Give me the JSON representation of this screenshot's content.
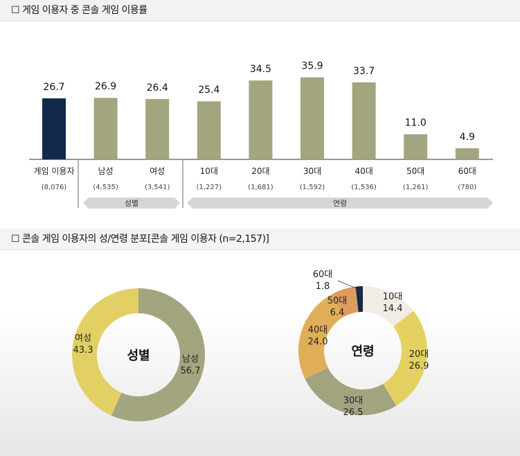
{
  "section1_title": "☐  게임 이용자 중 콘솔 게임 이용률",
  "section2_title": "☐  콘솔 게임 이용자의 성/연령 분포[콘솔 게임 이용자 (n=2,157)]",
  "chart_data": [
    {
      "type": "bar",
      "categories": [
        "게임 이용자",
        "남성",
        "여성",
        "10대",
        "20대",
        "30대",
        "40대",
        "50대",
        "60대"
      ],
      "sample_sizes": [
        "(8,076)",
        "(4,535)",
        "(3,541)",
        "(1,227)",
        "(1,681)",
        "(1,592)",
        "(1,536)",
        "(1,261)",
        "(780)"
      ],
      "values": [
        26.7,
        26.9,
        26.4,
        25.4,
        34.5,
        35.9,
        33.7,
        11.0,
        4.9
      ],
      "value_labels": [
        "26.7",
        "26.9",
        "26.4",
        "25.4",
        "34.5",
        "35.9",
        "33.7",
        "11.0",
        "4.9"
      ],
      "colors": [
        "#13294b",
        "#a3a57f",
        "#a3a57f",
        "#a3a57f",
        "#a3a57f",
        "#a3a57f",
        "#a3a57f",
        "#a3a57f",
        "#a3a57f"
      ],
      "groups": [
        {
          "label": "성별",
          "members": [
            "남성",
            "여성"
          ]
        },
        {
          "label": "연령",
          "members": [
            "10대",
            "20대",
            "30대",
            "40대",
            "50대",
            "60대"
          ]
        }
      ],
      "ylim": [
        0,
        40
      ]
    },
    {
      "type": "pie",
      "donut": true,
      "center_label": "성별",
      "slices": [
        {
          "label": "남성",
          "value": 56.7,
          "value_label": "56.7",
          "color": "#a3a57f"
        },
        {
          "label": "여성",
          "value": 43.3,
          "value_label": "43.3",
          "color": "#e2d065"
        }
      ]
    },
    {
      "type": "pie",
      "donut": true,
      "center_label": "연령",
      "slices": [
        {
          "label": "10대",
          "value": 14.4,
          "value_label": "14.4",
          "color": "#f1ece4"
        },
        {
          "label": "20대",
          "value": 26.9,
          "value_label": "26.9",
          "color": "#e3d262"
        },
        {
          "label": "30대",
          "value": 26.5,
          "value_label": "26.5",
          "color": "#a2a47f"
        },
        {
          "label": "40대",
          "value": 24.0,
          "value_label": "24.0",
          "color": "#e0ae57"
        },
        {
          "label": "50대",
          "value": 6.4,
          "value_label": "6.4",
          "color": "#de9c60"
        },
        {
          "label": "60대",
          "value": 1.8,
          "value_label": "1.8",
          "color": "#13294b"
        }
      ]
    }
  ]
}
